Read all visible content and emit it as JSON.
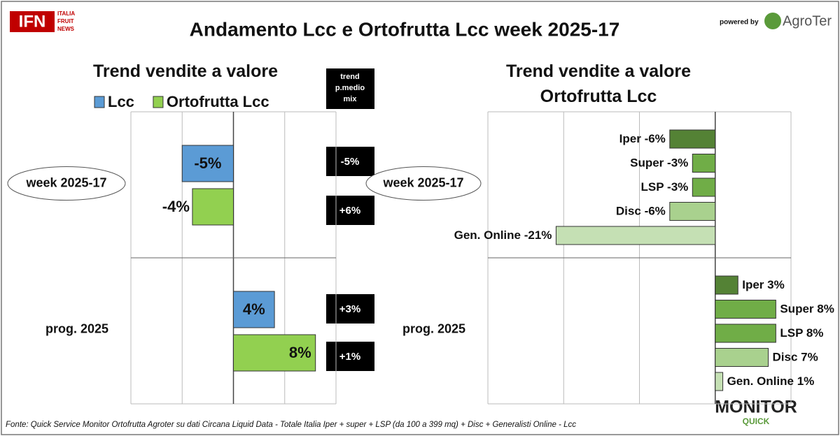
{
  "header": {
    "title": "Andamento Lcc e Ortofrutta Lcc week 2025-17"
  },
  "logos": {
    "ifn": "IFN",
    "ifn_sub": [
      "ITALIA",
      "FRUIT",
      "NEWS"
    ],
    "powered_by": "powered by",
    "agroter": "AgroTer",
    "monitor": "MONITOR",
    "quick": "QUICK"
  },
  "trend": {
    "title": "trend p.medio mix",
    "values": [
      "-5%",
      "+6%",
      "+3%",
      "+1%"
    ]
  },
  "chart_data": [
    {
      "type": "bar",
      "orientation": "horizontal",
      "title": "Trend vendite a valore",
      "categories": [
        "week 2025-17",
        "prog. 2025"
      ],
      "series": [
        {
          "name": "Lcc",
          "color": "#5b9bd5",
          "values": [
            -5,
            4
          ],
          "value_labels": [
            "-5%",
            "4%"
          ]
        },
        {
          "name": "Ortofrutta Lcc",
          "color": "#92d050",
          "values": [
            -4,
            8
          ],
          "value_labels": [
            "-4%",
            "8%"
          ]
        }
      ],
      "xlim": [
        -10,
        10
      ],
      "xticks": [
        -10,
        -5,
        0,
        5,
        10
      ],
      "grid": true,
      "legend": "top"
    },
    {
      "type": "bar",
      "orientation": "horizontal",
      "title": "Trend vendite a valore Ortofrutta Lcc",
      "categories": [
        "week 2025-17",
        "prog. 2025"
      ],
      "series": [
        {
          "name": "Iper",
          "color": "#548235",
          "values": [
            -6,
            3
          ],
          "value_labels": [
            "-6%",
            "3%"
          ]
        },
        {
          "name": "Super",
          "color": "#70ad47",
          "values": [
            -3,
            8
          ],
          "value_labels": [
            "-3%",
            "8%"
          ]
        },
        {
          "name": "LSP",
          "color": "#70ad47",
          "values": [
            -3,
            8
          ],
          "value_labels": [
            "-3%",
            "8%"
          ]
        },
        {
          "name": "Disc",
          "color": "#a9d18e",
          "values": [
            -6,
            7
          ],
          "value_labels": [
            "-6%",
            "7%"
          ]
        },
        {
          "name": "Gen. Online",
          "color": "#c5e0b4",
          "values": [
            -21,
            1
          ],
          "value_labels": [
            "-21%",
            "1%"
          ]
        }
      ],
      "xlim": [
        -30,
        10
      ],
      "xticks": [
        -30,
        -20,
        -10,
        0,
        10
      ],
      "grid": true
    }
  ],
  "footnote": "Fonte: Quick Service Monitor Ortofrutta Agroter su dati Circana Liquid Data - Totale Italia Iper + super + LSP (da 100 a 399 mq) + Disc + Generalisti Online - Lcc"
}
